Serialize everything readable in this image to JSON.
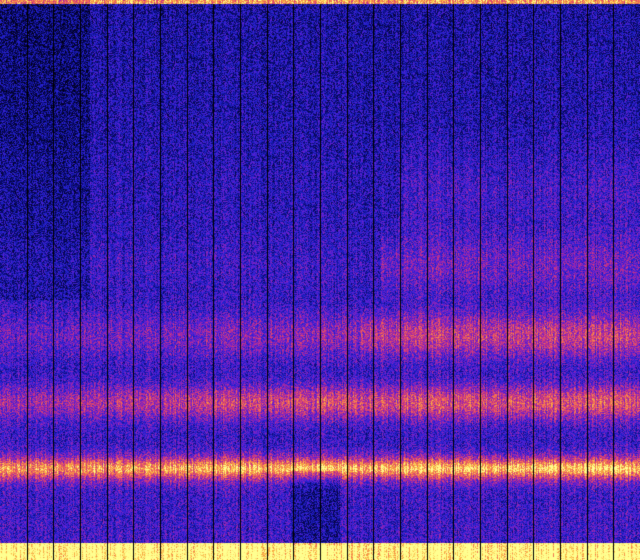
{
  "spectrogram": {
    "colormap": [
      "#000010",
      "#0a0a6e",
      "#2222d0",
      "#6a1fd0",
      "#c0308a",
      "#f0605a",
      "#f8b040",
      "#ffff90"
    ],
    "background_color": "#12127a",
    "separator_color": "#000000"
  }
}
